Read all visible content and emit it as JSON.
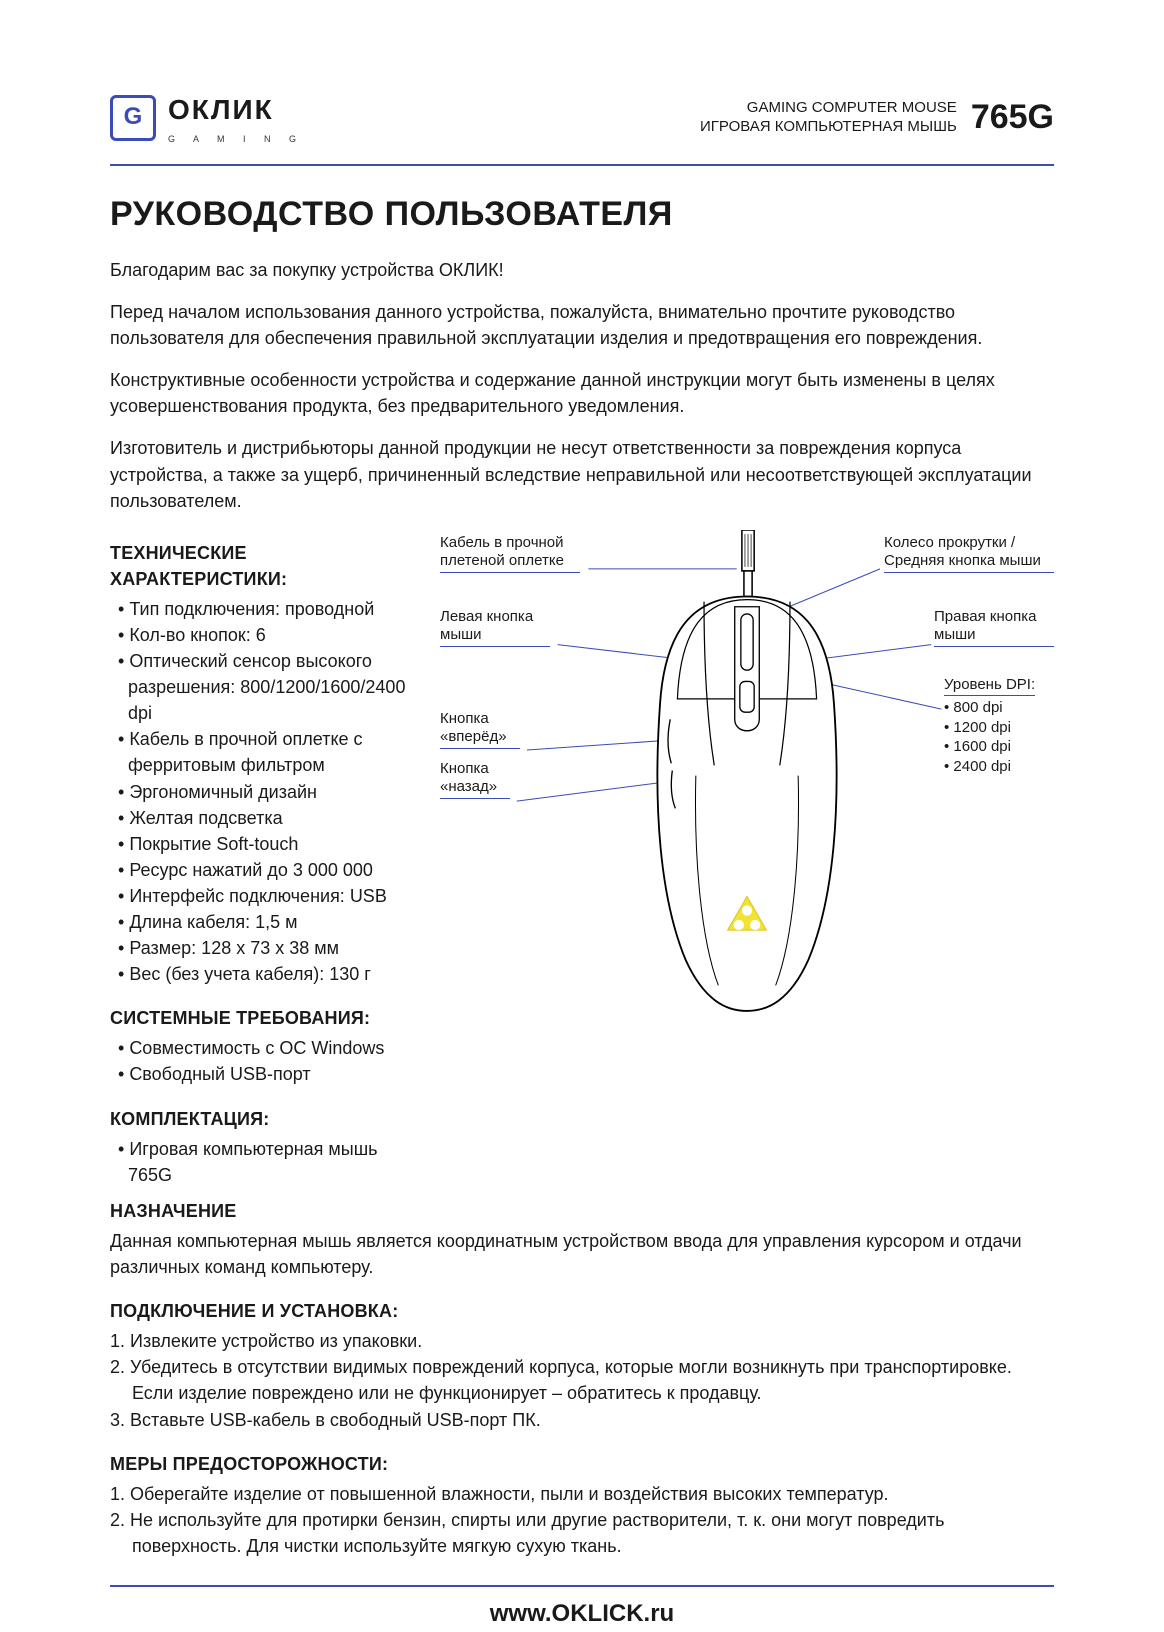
{
  "colors": {
    "accent": "#3b4bb8",
    "text": "#1a1a1a",
    "highlight": "#f2e233"
  },
  "header": {
    "logo_main": "ОКЛИК",
    "logo_sub": "G A M I N G",
    "title_en": "GAMING COMPUTER MOUSE",
    "title_ru": "ИГРОВАЯ КОМПЬЮТЕРНАЯ МЫШЬ",
    "model": "765G"
  },
  "h1": "РУКОВОДСТВО ПОЛЬЗОВАТЕЛЯ",
  "intro": {
    "p1": "Благодарим вас за покупку устройства ОКЛИК!",
    "p2": "Перед началом использования данного устройства, пожалуйста, внимательно прочтите руководство пользователя для обеспечения правильной эксплуатации изделия и предотвращения его повреждения.",
    "p3": "Конструктивные особенности устройства и содержание данной инструкции могут быть изменены в целях усовершенствования продукта, без предварительного уведомления.",
    "p4": "Изготовитель и дистрибьюторы данной продукции не несут ответственности за повреждения корпуса устройства, а также за ущерб, причиненный вследствие неправильной или несоответствующей эксплуатации пользователем."
  },
  "specs": {
    "title": "ТЕХНИЧЕСКИЕ ХАРАКТЕРИСТИКИ:",
    "items": [
      "Тип подключения: проводной",
      "Кол-во кнопок: 6",
      "Оптический сенсор высокого разрешения: 800/1200/1600/2400 dpi",
      "Кабель в прочной оплетке с ферритовым фильтром",
      "Эргономичный дизайн",
      "Желтая подсветка",
      "Покрытие Soft-touch",
      "Ресурс нажатий до 3 000 000",
      "Интерфейс подключения: USB",
      "Длина кабеля: 1,5 м",
      "Размер: 128 х 73 х 38 мм",
      "Вес (без учета кабеля): 130 г"
    ]
  },
  "sysreq": {
    "title": "СИСТЕМНЫЕ ТРЕБОВАНИЯ:",
    "items": [
      "Совместимость с ОС Windows",
      "Свободный USB-порт"
    ]
  },
  "package": {
    "title": "КОМПЛЕКТАЦИЯ:",
    "items": [
      "Игровая компьютерная мышь 765G"
    ]
  },
  "purpose": {
    "title": "НАЗНАЧЕНИЕ",
    "text": "Данная компьютерная мышь является координатным устройством ввода для управления курсором и отдачи различных команд компьютеру."
  },
  "install": {
    "title": "ПОДКЛЮЧЕНИЕ И УСТАНОВКА:",
    "steps": [
      "1. Извлеките устройство из упаковки.",
      "2. Убедитесь в отсутствии видимых повреждений корпуса, которые могли возникнуть при транспортировке. Если изделие повреждено или не функционирует – обратитесь к продавцу.",
      "3. Вставьте USB-кабель в свободный USB-порт ПК."
    ]
  },
  "precautions": {
    "title": "МЕРЫ ПРЕДОСТОРОЖНОСТИ:",
    "steps": [
      "1. Оберегайте изделие от повышенной влажности, пыли и воздействия высоких температур.",
      "2. Не используйте для протирки бензин, спирты или другие растворители, т. к. они могут повредить поверхность. Для чистки используйте мягкую сухую ткань."
    ]
  },
  "diagram": {
    "callouts": {
      "cable": "Кабель в прочной плетеной оплетке",
      "scroll": "Колесо прокрутки / Средняя кнопка мыши",
      "left_btn": "Левая кнопка мыши",
      "right_btn": "Правая кнопка мыши",
      "forward": "Кнопка «вперёд»",
      "back": "Кнопка «назад»",
      "dpi_title": "Уровень DPI:",
      "dpi_levels": [
        "800 dpi",
        "1200 dpi",
        "1600 dpi",
        "2400 dpi"
      ]
    }
  },
  "footer": {
    "url": "www.OKLICK.ru"
  }
}
